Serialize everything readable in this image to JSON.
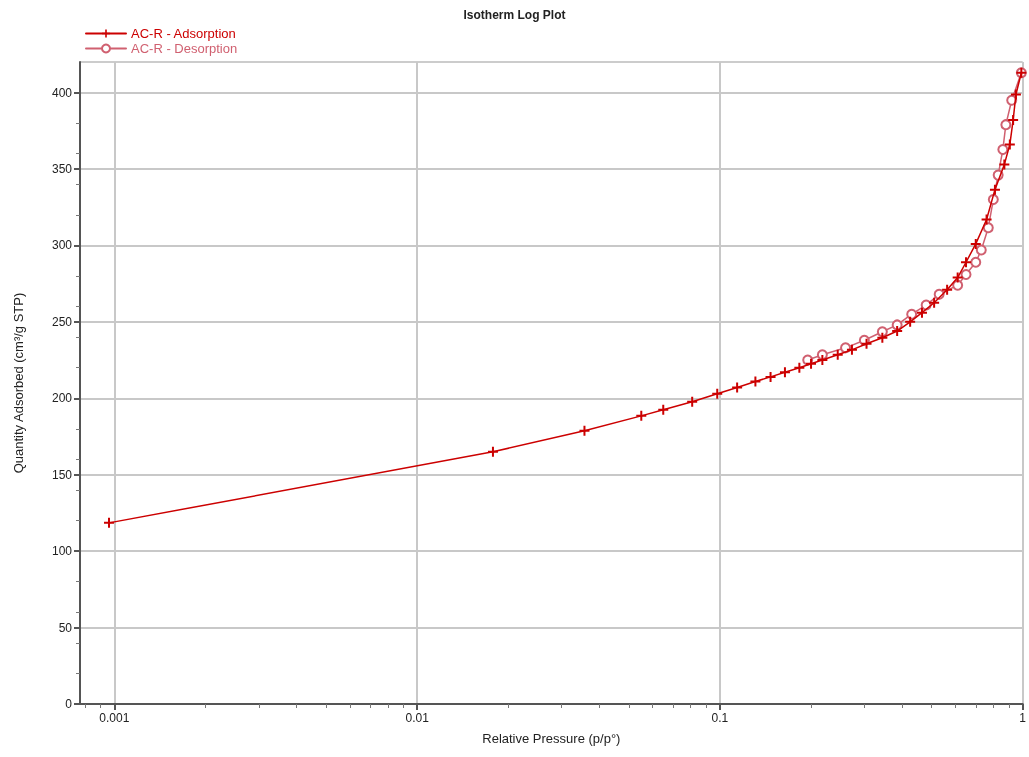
{
  "chart_data": {
    "type": "line",
    "title": "Isotherm Log Plot",
    "xlabel": "Relative Pressure (p/p°)",
    "ylabel": "Quantity Adsorbed (cm³/g STP)",
    "log": "x",
    "xlim": [
      0.00077,
      1
    ],
    "xticks": [
      0.001,
      0.01,
      0.1,
      1
    ],
    "ylim": [
      0,
      420
    ],
    "yticks": [
      0,
      50,
      100,
      150,
      200,
      250,
      300,
      350,
      400
    ],
    "grid": true,
    "legend": "top left",
    "line_style": "solid",
    "series": [
      {
        "name": "AC-R - Adsorption",
        "color": "#cc0000",
        "marker": "cross",
        "x": [
          0.00096,
          0.0178,
          0.0357,
          0.055,
          0.065,
          0.081,
          0.098,
          0.114,
          0.131,
          0.147,
          0.164,
          0.183,
          0.2,
          0.218,
          0.245,
          0.273,
          0.305,
          0.344,
          0.385,
          0.425,
          0.465,
          0.51,
          0.563,
          0.61,
          0.65,
          0.7,
          0.76,
          0.81,
          0.87,
          0.907,
          0.93,
          0.95,
          0.99
        ],
        "values": [
          118.5,
          165,
          178.7,
          188.5,
          192.5,
          197.7,
          203,
          207,
          211,
          214,
          217,
          220,
          222.6,
          225,
          228.5,
          231.7,
          235.7,
          239.6,
          244,
          250,
          256,
          262.5,
          271,
          279,
          289,
          301,
          317,
          336.5,
          353,
          366,
          382,
          398.7,
          413
        ]
      },
      {
        "name": "AC-R - Desorption",
        "color": "#d06070",
        "marker": "circle",
        "x": [
          0.99,
          0.92,
          0.88,
          0.86,
          0.83,
          0.8,
          0.77,
          0.73,
          0.7,
          0.65,
          0.61,
          0.53,
          0.48,
          0.43,
          0.385,
          0.344,
          0.3,
          0.26,
          0.218,
          0.195
        ],
        "values": [
          413,
          395,
          379,
          362.7,
          346,
          330,
          311.6,
          297,
          289,
          281,
          274,
          268,
          261,
          255,
          248,
          243.5,
          238,
          233,
          228.5,
          225
        ]
      }
    ]
  }
}
